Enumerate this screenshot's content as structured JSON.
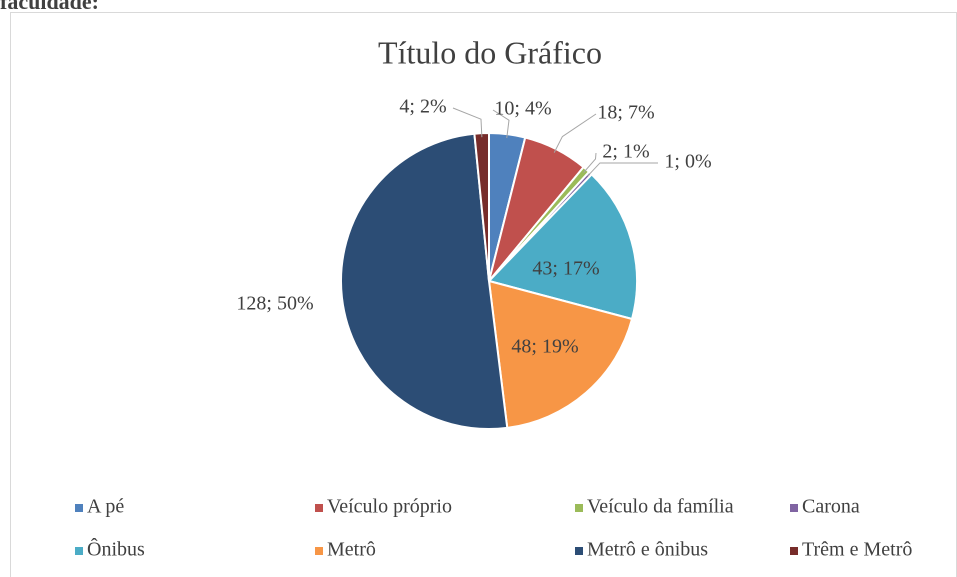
{
  "caption": "faculdade:",
  "chart_data": {
    "type": "pie",
    "title": "Título do Gráfico",
    "categories": [
      "A pé",
      "Veículo próprio",
      "Veículo da família",
      "Carona",
      "Ônibus",
      "Metrô",
      "Metrô e ônibus",
      "Trêm e Metrô"
    ],
    "values": [
      10,
      18,
      2,
      1,
      43,
      48,
      128,
      4
    ],
    "value_labels": [
      "10; 4%",
      "18; 7%",
      "2; 1%",
      "1; 0%",
      "43; 17%",
      "48; 19%",
      "128; 50%",
      "4; 2%"
    ],
    "colors": [
      "#4f81bd",
      "#c0504d",
      "#9bbb59",
      "#8064a2",
      "#4bacc6",
      "#f79646",
      "#2c4d75",
      "#772c2a"
    ],
    "legend": "bottom"
  }
}
